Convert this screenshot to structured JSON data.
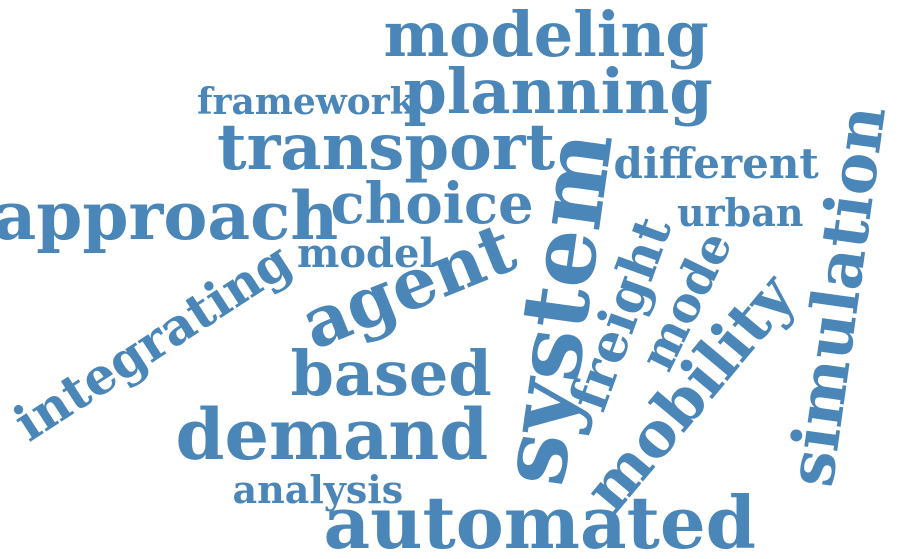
{
  "word_cloud": {
    "color": "#4a86b8",
    "words": [
      {
        "text": "modeling"
      },
      {
        "text": "planning"
      },
      {
        "text": "framework"
      },
      {
        "text": "transport"
      },
      {
        "text": "different"
      },
      {
        "text": "approach"
      },
      {
        "text": "choice"
      },
      {
        "text": "urban"
      },
      {
        "text": "model"
      },
      {
        "text": "agent"
      },
      {
        "text": "integrating"
      },
      {
        "text": "system"
      },
      {
        "text": "freight"
      },
      {
        "text": "mode"
      },
      {
        "text": "based"
      },
      {
        "text": "mobility"
      },
      {
        "text": "simulation"
      },
      {
        "text": "demand"
      },
      {
        "text": "analysis"
      },
      {
        "text": "automated"
      }
    ]
  }
}
